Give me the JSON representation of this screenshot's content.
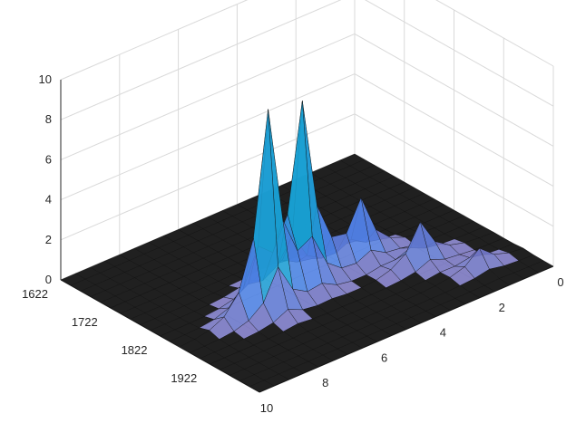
{
  "chart_data": {
    "type": "surface-3d",
    "xlim": [
      1622,
      2022
    ],
    "ylim": [
      0,
      10
    ],
    "zlim": [
      0,
      10
    ],
    "x_ticks": [
      "1622",
      "1722",
      "1822",
      "1922"
    ],
    "y_ticks": [
      "0",
      "2",
      "4",
      "6",
      "8",
      "10"
    ],
    "z_ticks": [
      "0",
      "2",
      "4",
      "6",
      "8",
      "10"
    ],
    "grid": true,
    "colormap": "parula",
    "x_grid": [
      1622,
      1642,
      1662,
      1682,
      1702,
      1722,
      1742,
      1762,
      1782,
      1802,
      1822,
      1842,
      1862,
      1882,
      1902,
      1922,
      1942,
      1962,
      1982,
      2002,
      2022
    ],
    "y_grid": [
      0,
      0.5,
      1,
      1.5,
      2,
      2.5,
      3,
      3.5,
      4,
      4.5,
      5,
      5.5,
      6,
      6.5,
      7,
      7.5,
      8,
      8.5,
      9,
      9.5,
      10
    ],
    "peaks": [
      {
        "x": 1862,
        "y": 7.0,
        "height": 10.0
      },
      {
        "x": 1842,
        "y": 5.5,
        "height": 9.0
      },
      {
        "x": 1842,
        "y": 3.5,
        "height": 2.9
      },
      {
        "x": 1902,
        "y": 2.5,
        "height": 2.1
      },
      {
        "x": 1962,
        "y": 1.5,
        "height": 1.0
      },
      {
        "x": 1800,
        "y": 6.0,
        "height": 0.5
      }
    ]
  }
}
